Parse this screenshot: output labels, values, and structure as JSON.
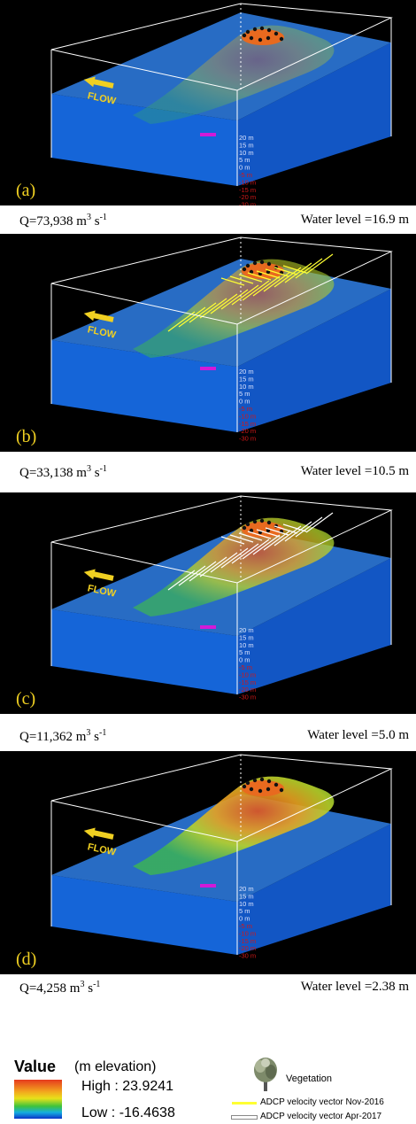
{
  "panels": [
    {
      "label": "(a)",
      "q_prefix": "Q=73,938 m",
      "q_exp": "3",
      "q_unit": " s",
      "q_uexp": "-1",
      "water_level": "Water level =16.9 m",
      "vectors": "none",
      "depth": 0.0
    },
    {
      "label": "(b)",
      "q_prefix": "Q=33,138 m",
      "q_exp": "3",
      "q_unit": " s",
      "q_uexp": "-1",
      "water_level": "Water level =10.5 m",
      "vectors": "yellow",
      "depth": 0.35
    },
    {
      "label": "(c)",
      "q_prefix": "Q=11,362 m",
      "q_exp": "3",
      "q_unit": " s",
      "q_uexp": "-1",
      "water_level": "Water level =5.0 m",
      "vectors": "white",
      "depth": 0.65
    },
    {
      "label": "(d)",
      "q_prefix": "Q=4,258 m",
      "q_exp": "3",
      "q_unit": " s",
      "q_uexp": "-1",
      "water_level": "Water level =2.38 m",
      "vectors": "none",
      "depth": 0.85
    }
  ],
  "flow_label": "FLOW",
  "depth_scale": [
    "20 m",
    "15 m",
    "10 m",
    "5 m",
    "0 m",
    "-5 m",
    "-10 m",
    "-15 m",
    "-20 m",
    "-30 m"
  ],
  "legend": {
    "title": "Value",
    "unit": "(m elevation)",
    "high": "High : 23.9241",
    "low": "Low : -16.4638",
    "vegetation": "Vegetation",
    "vector_nov": "ADCP velocity vector Nov-2016",
    "vector_apr": "ADCP velocity vector Apr-2017"
  },
  "colors": {
    "water": "#1565d8",
    "nov_vector": "#ffff33",
    "apr_vector": "#ffffff",
    "background": "#000000"
  }
}
